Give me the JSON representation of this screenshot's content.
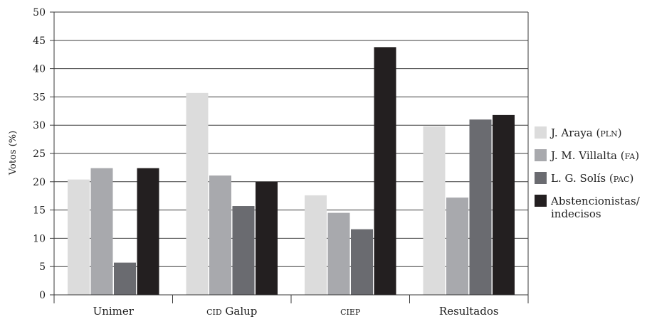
{
  "chart_data": {
    "type": "bar",
    "ylabel": "Votos (%)",
    "xlabel": "",
    "ylim": [
      0,
      50
    ],
    "y_ticks": [
      0,
      5,
      10,
      15,
      20,
      25,
      30,
      35,
      40,
      45,
      50
    ],
    "grid": true,
    "legend_position": "right",
    "categories": [
      {
        "main": "Unimer",
        "sc": ""
      },
      {
        "main": " Galup",
        "sc": "cid"
      },
      {
        "main": "",
        "sc": "ciep"
      },
      {
        "main": "Resultados",
        "sc": ""
      }
    ],
    "series": [
      {
        "name": "J. Araya (",
        "sc": "pln",
        "suffix": ")",
        "color": "#dcdcdc",
        "values": [
          20.4,
          35.7,
          17.6,
          29.8
        ]
      },
      {
        "name": "J. M. Villalta (",
        "sc": "fa",
        "suffix": ")",
        "color": "#a8a9ad",
        "values": [
          22.4,
          21.1,
          14.5,
          17.2
        ]
      },
      {
        "name": "L. G. Solís (",
        "sc": "pac",
        "suffix": ")",
        "color": "#6a6b70",
        "values": [
          5.7,
          15.7,
          11.6,
          31.0
        ]
      },
      {
        "name": "Abstencionistas/",
        "name_line2": "indecisos",
        "sc": "",
        "suffix": "",
        "color": "#231f20",
        "values": [
          22.4,
          20.0,
          43.8,
          31.8
        ]
      }
    ]
  }
}
